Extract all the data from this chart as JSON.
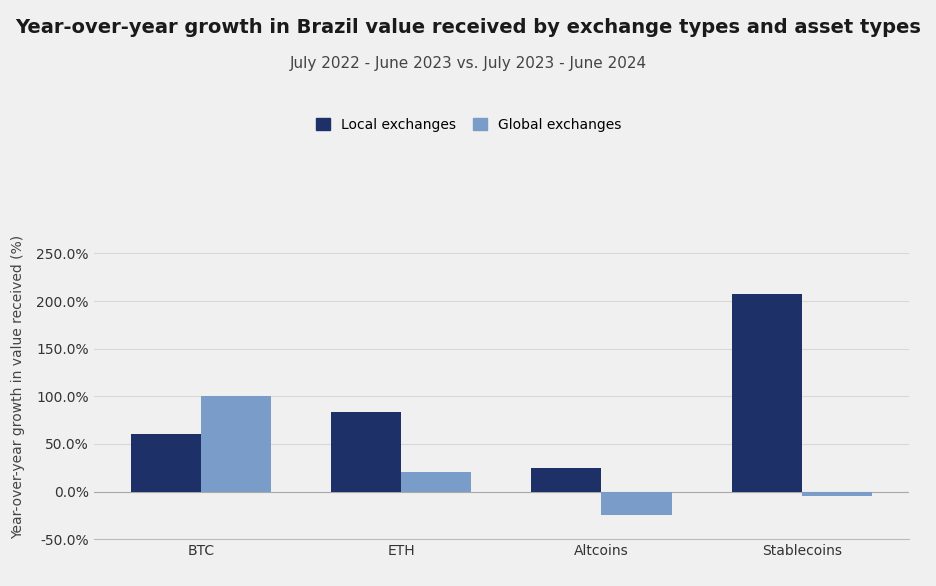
{
  "title": "Year-over-year growth in Brazil value received by exchange types and asset types",
  "subtitle": "July 2022 - June 2023 vs. July 2023 - June 2024",
  "categories": [
    "BTC",
    "ETH",
    "Altcoins",
    "Stablecoins"
  ],
  "local_values": [
    60,
    83,
    25,
    207
  ],
  "global_values": [
    100,
    20,
    -25,
    -5
  ],
  "local_color": "#1e3068",
  "global_color": "#7a9cc9",
  "ylabel": "Year-over-year growth in value received (%)",
  "ylim": [
    -50,
    270
  ],
  "yticks": [
    -50,
    0,
    50,
    100,
    150,
    200,
    250
  ],
  "background_color": "#f0f0f0",
  "legend_labels": [
    "Local exchanges",
    "Global exchanges"
  ],
  "bar_width": 0.35,
  "title_fontsize": 14,
  "subtitle_fontsize": 11,
  "axis_fontsize": 10,
  "tick_fontsize": 10
}
